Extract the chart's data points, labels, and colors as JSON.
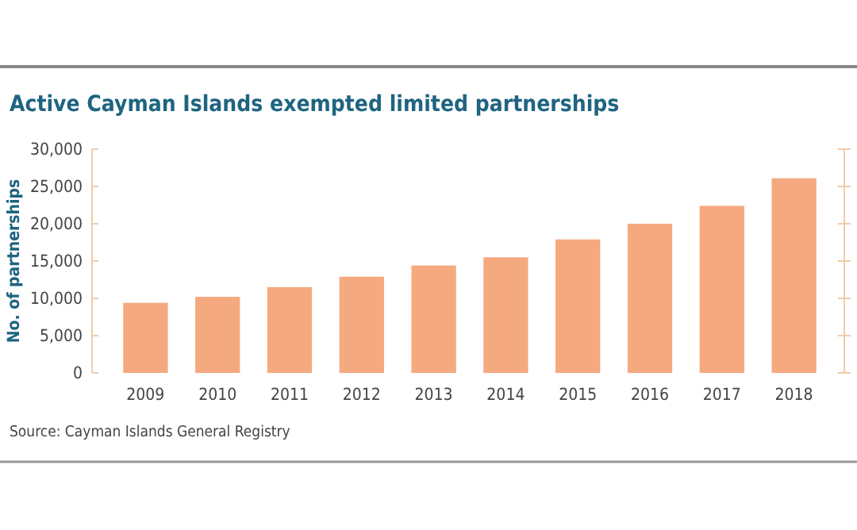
{
  "chart_data": {
    "type": "bar",
    "title": "Active Cayman Islands exempted limited partnerships",
    "ylabel": "No. of partnerships",
    "categories": [
      "2009",
      "2010",
      "2011",
      "2012",
      "2013",
      "2014",
      "2015",
      "2016",
      "2017",
      "2018"
    ],
    "values": [
      9400,
      10200,
      11500,
      12900,
      14400,
      15500,
      17900,
      20000,
      22400,
      26100
    ],
    "color": "#f5a97f",
    "ylim": [
      0,
      30000
    ],
    "yticks": [
      {
        "value": 0,
        "label": "0"
      },
      {
        "value": 5000,
        "label": "5,000"
      },
      {
        "value": 10000,
        "label": "10,000"
      },
      {
        "value": 15000,
        "label": "15,000"
      },
      {
        "value": 20000,
        "label": "20,000"
      },
      {
        "value": 25000,
        "label": "25,000"
      },
      {
        "value": 30000,
        "label": "30,000"
      }
    ],
    "annotations": [
      "Source: Cayman Islands General Registry"
    ]
  }
}
